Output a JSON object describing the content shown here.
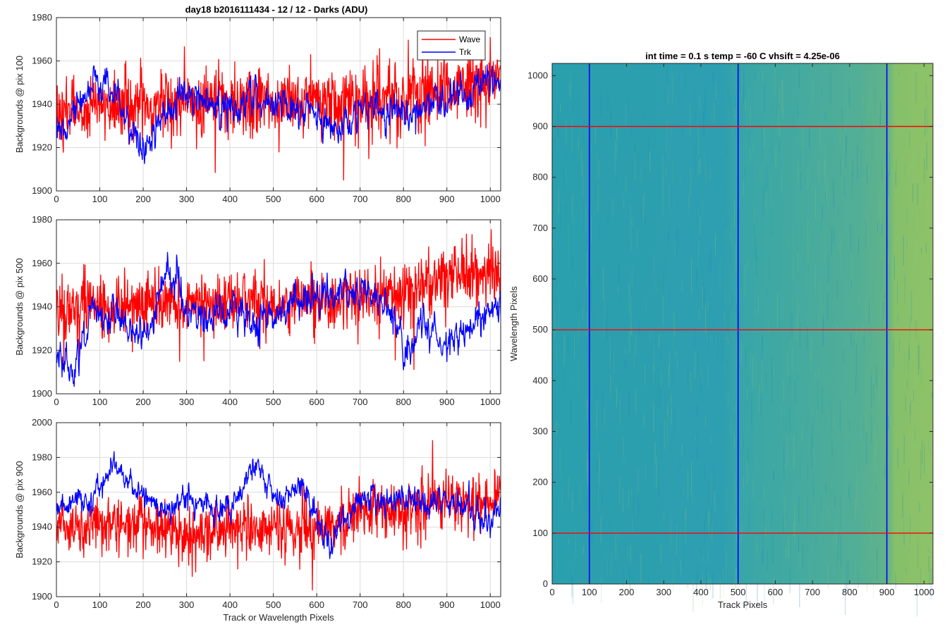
{
  "figure_title": "day18 b2016111434 - 12 / 12 - Darks (ADU)",
  "colors": {
    "wave": "#ff0000",
    "trk": "#0000ff",
    "grid": "#dcdcdc",
    "axis": "#262626",
    "image_low": "#1e9bb0",
    "image_high": "#8cc062"
  },
  "chart_data": [
    {
      "type": "line",
      "ylabel": "Backgrounds @ pix 100",
      "xlabel": "",
      "xlim": [
        0,
        1024
      ],
      "ylim": [
        1900,
        1980
      ],
      "xticks": [
        0,
        100,
        200,
        300,
        400,
        500,
        600,
        700,
        800,
        900,
        1000
      ],
      "yticks": [
        1900,
        1920,
        1940,
        1960,
        1980
      ],
      "grid": true,
      "legend_position": "top-right",
      "series": [
        {
          "name": "Wave",
          "color": "#ff0000",
          "mean": 1940,
          "noise": 8,
          "waypoints": [
            [
              0,
              1935
            ],
            [
              100,
              1940
            ],
            [
              200,
              1938
            ],
            [
              300,
              1942
            ],
            [
              400,
              1940
            ],
            [
              500,
              1942
            ],
            [
              600,
              1941
            ],
            [
              700,
              1943
            ],
            [
              800,
              1944
            ],
            [
              900,
              1946
            ],
            [
              1000,
              1950
            ],
            [
              1024,
              1950
            ]
          ]
        },
        {
          "name": "Trk",
          "color": "#0000ff",
          "mean": 1938,
          "noise": 5,
          "waypoints": [
            [
              0,
              1925
            ],
            [
              50,
              1940
            ],
            [
              100,
              1950
            ],
            [
              140,
              1945
            ],
            [
              200,
              1915
            ],
            [
              250,
              1935
            ],
            [
              300,
              1945
            ],
            [
              400,
              1938
            ],
            [
              450,
              1945
            ],
            [
              500,
              1940
            ],
            [
              600,
              1935
            ],
            [
              650,
              1925
            ],
            [
              700,
              1940
            ],
            [
              800,
              1935
            ],
            [
              900,
              1942
            ],
            [
              1000,
              1950
            ],
            [
              1024,
              1950
            ]
          ]
        }
      ]
    },
    {
      "type": "line",
      "ylabel": "Backgrounds @ pix 500",
      "xlabel": "",
      "xlim": [
        0,
        1024
      ],
      "ylim": [
        1900,
        1980
      ],
      "xticks": [
        0,
        100,
        200,
        300,
        400,
        500,
        600,
        700,
        800,
        900,
        1000
      ],
      "yticks": [
        1900,
        1920,
        1940,
        1960,
        1980
      ],
      "grid": true,
      "series": [
        {
          "name": "Wave",
          "color": "#ff0000",
          "mean": 1942,
          "noise": 7,
          "waypoints": [
            [
              0,
              1938
            ],
            [
              100,
              1942
            ],
            [
              200,
              1940
            ],
            [
              300,
              1940
            ],
            [
              400,
              1942
            ],
            [
              500,
              1942
            ],
            [
              600,
              1945
            ],
            [
              700,
              1945
            ],
            [
              800,
              1945
            ],
            [
              900,
              1955
            ],
            [
              1000,
              1955
            ],
            [
              1024,
              1955
            ]
          ]
        },
        {
          "name": "Trk",
          "color": "#0000ff",
          "mean": 1935,
          "noise": 5,
          "waypoints": [
            [
              0,
              1920
            ],
            [
              40,
              1910
            ],
            [
              80,
              1935
            ],
            [
              150,
              1935
            ],
            [
              200,
              1925
            ],
            [
              260,
              1955
            ],
            [
              300,
              1940
            ],
            [
              350,
              1935
            ],
            [
              400,
              1940
            ],
            [
              450,
              1930
            ],
            [
              500,
              1935
            ],
            [
              600,
              1945
            ],
            [
              700,
              1950
            ],
            [
              780,
              1935
            ],
            [
              800,
              1915
            ],
            [
              850,
              1935
            ],
            [
              900,
              1920
            ],
            [
              1000,
              1940
            ],
            [
              1024,
              1940
            ]
          ]
        }
      ]
    },
    {
      "type": "line",
      "ylabel": "Backgrounds @ pix 900",
      "xlabel": "Track or Wavelength Pixels",
      "xlim": [
        0,
        1024
      ],
      "ylim": [
        1900,
        2000
      ],
      "xticks": [
        0,
        100,
        200,
        300,
        400,
        500,
        600,
        700,
        800,
        900,
        1000
      ],
      "yticks": [
        1900,
        1920,
        1940,
        1960,
        1980,
        2000
      ],
      "grid": true,
      "series": [
        {
          "name": "Wave",
          "color": "#ff0000",
          "mean": 1940,
          "noise": 8,
          "waypoints": [
            [
              0,
              1940
            ],
            [
              100,
              1940
            ],
            [
              200,
              1940
            ],
            [
              300,
              1935
            ],
            [
              400,
              1940
            ],
            [
              500,
              1938
            ],
            [
              600,
              1940
            ],
            [
              700,
              1950
            ],
            [
              800,
              1950
            ],
            [
              900,
              1955
            ],
            [
              1000,
              1955
            ],
            [
              1024,
              1960
            ]
          ]
        },
        {
          "name": "Trk",
          "color": "#0000ff",
          "mean": 1955,
          "noise": 5,
          "waypoints": [
            [
              0,
              1950
            ],
            [
              80,
              1955
            ],
            [
              130,
              1975
            ],
            [
              180,
              1965
            ],
            [
              230,
              1950
            ],
            [
              300,
              1955
            ],
            [
              400,
              1950
            ],
            [
              460,
              1980
            ],
            [
              500,
              1955
            ],
            [
              560,
              1965
            ],
            [
              600,
              1945
            ],
            [
              630,
              1930
            ],
            [
              700,
              1955
            ],
            [
              800,
              1955
            ],
            [
              900,
              1955
            ],
            [
              1000,
              1945
            ],
            [
              1024,
              1945
            ]
          ]
        }
      ]
    },
    {
      "type": "heatmap",
      "title": "int time = 0.1 s   temp = -60 C   vhsift = 4.25e-06",
      "xlabel": "Track Pixels",
      "ylabel": "Wavelength Pixels",
      "xlim": [
        0,
        1024
      ],
      "ylim": [
        0,
        1024
      ],
      "xticks": [
        0,
        100,
        200,
        300,
        400,
        500,
        600,
        700,
        800,
        900,
        1000
      ],
      "yticks": [
        0,
        100,
        200,
        300,
        400,
        500,
        600,
        700,
        800,
        900,
        1000
      ],
      "vertical_lines": [
        100,
        500,
        900
      ],
      "horizontal_lines": [
        100,
        500,
        900
      ],
      "vertical_line_color": "#0000ff",
      "horizontal_line_color": "#ff0000"
    }
  ],
  "legend": {
    "items": [
      "Wave",
      "Trk"
    ]
  }
}
